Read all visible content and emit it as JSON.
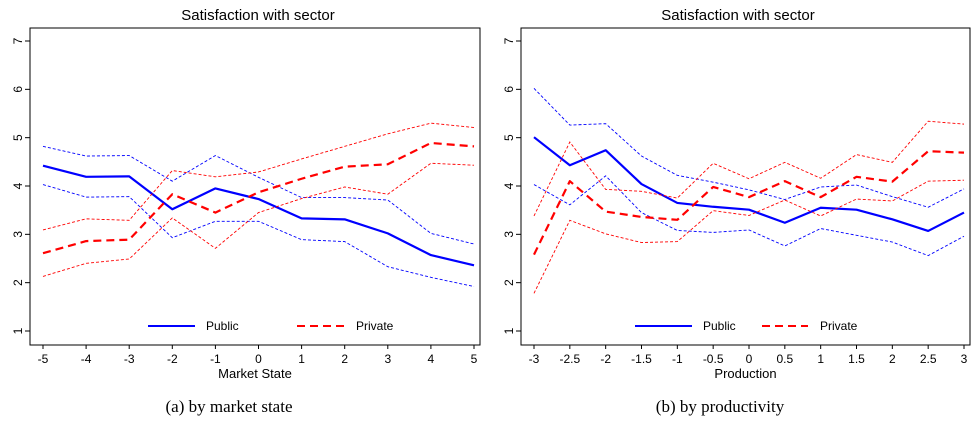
{
  "chart_data": [
    {
      "type": "line",
      "title": "Satisfaction with sector",
      "xlabel": "Market State",
      "ylabel": "",
      "caption": "(a) by market state",
      "x": [
        -5,
        -4,
        -3,
        -2,
        -1,
        0,
        1,
        2,
        3,
        4,
        5
      ],
      "x_tick_labels": [
        "-5",
        "-4",
        "-3",
        "-2",
        "-1",
        "0",
        "1",
        "2",
        "3",
        "4",
        "5"
      ],
      "xlim": [
        -5,
        5
      ],
      "ylim": [
        1,
        7
      ],
      "y_ticks": [
        1,
        2,
        3,
        4,
        5,
        6,
        7
      ],
      "y_tick_labels": [
        "1",
        "2",
        "3",
        "4",
        "5",
        "6",
        "7"
      ],
      "grid": false,
      "legend_position": "bottom",
      "series": [
        {
          "name": "Public",
          "color": "#0000ff",
          "style": "solid",
          "values": [
            4.42,
            4.19,
            4.2,
            3.52,
            3.95,
            3.73,
            3.33,
            3.31,
            3.02,
            2.57,
            2.36
          ],
          "lower": [
            4.03,
            3.77,
            3.78,
            2.93,
            3.27,
            3.27,
            2.89,
            2.85,
            2.33,
            2.11,
            1.92
          ],
          "upper": [
            4.82,
            4.62,
            4.63,
            4.1,
            4.63,
            4.18,
            3.76,
            3.76,
            3.71,
            3.02,
            2.8
          ]
        },
        {
          "name": "Private",
          "color": "#ff0000",
          "style": "dashed",
          "values": [
            2.61,
            2.86,
            2.89,
            3.83,
            3.45,
            3.87,
            4.15,
            4.4,
            4.45,
            4.89,
            4.82
          ],
          "lower": [
            2.13,
            2.4,
            2.49,
            3.34,
            2.71,
            3.45,
            3.74,
            3.98,
            3.83,
            4.47,
            4.43
          ],
          "upper": [
            3.09,
            3.32,
            3.29,
            4.32,
            4.19,
            4.29,
            4.56,
            4.82,
            5.08,
            5.3,
            5.21
          ]
        }
      ]
    },
    {
      "type": "line",
      "title": "Satisfaction with sector",
      "xlabel": "Production",
      "ylabel": "",
      "caption": "(b) by productivity",
      "x": [
        -3,
        -2.5,
        -2,
        -1.5,
        -1,
        -0.5,
        0,
        0.5,
        1,
        1.5,
        2,
        2.5,
        3
      ],
      "x_tick_labels": [
        "-3",
        "-2.5",
        "-2",
        "-1.5",
        "-1",
        "-0.5",
        "0",
        "0.5",
        "1",
        "1.5",
        "2",
        "2.5",
        "3"
      ],
      "xlim": [
        -3,
        3
      ],
      "ylim": [
        1,
        7
      ],
      "y_ticks": [
        1,
        2,
        3,
        4,
        5,
        6,
        7
      ],
      "y_tick_labels": [
        "1",
        "2",
        "3",
        "4",
        "5",
        "6",
        "7"
      ],
      "grid": false,
      "legend_position": "bottom",
      "series": [
        {
          "name": "Public",
          "color": "#0000ff",
          "style": "solid",
          "values": [
            5.01,
            4.43,
            4.74,
            4.04,
            3.65,
            3.57,
            3.51,
            3.24,
            3.55,
            3.51,
            3.31,
            3.07,
            3.45
          ],
          "lower": [
            4.03,
            3.61,
            4.21,
            3.45,
            3.08,
            3.04,
            3.09,
            2.76,
            3.12,
            2.98,
            2.84,
            2.56,
            2.96
          ],
          "upper": [
            6.02,
            5.26,
            5.29,
            4.62,
            4.22,
            4.08,
            3.92,
            3.72,
            3.98,
            4.02,
            3.78,
            3.56,
            3.94
          ]
        },
        {
          "name": "Private",
          "color": "#ff0000",
          "style": "dashed",
          "values": [
            2.58,
            4.1,
            3.47,
            3.36,
            3.3,
            3.98,
            3.77,
            4.1,
            3.77,
            4.19,
            4.09,
            4.72,
            4.69
          ],
          "lower": [
            1.78,
            3.29,
            3.01,
            2.83,
            2.85,
            3.49,
            3.39,
            3.71,
            3.38,
            3.73,
            3.69,
            4.1,
            4.12
          ],
          "upper": [
            3.38,
            4.91,
            3.93,
            3.89,
            3.75,
            4.47,
            4.15,
            4.49,
            4.16,
            4.65,
            4.49,
            5.34,
            5.28
          ]
        }
      ]
    }
  ]
}
